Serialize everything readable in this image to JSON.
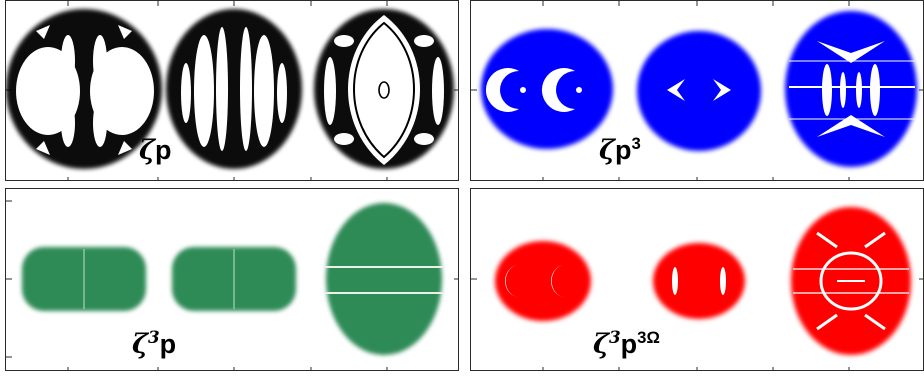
{
  "panels": [
    {
      "id": "zeta-p",
      "label_greek": "ζ",
      "label_greek_sup": "",
      "label_main": "p",
      "label_sup": "",
      "color": "#000000"
    },
    {
      "id": "zeta-p3",
      "label_greek": "ζ",
      "label_greek_sup": "",
      "label_main": "p",
      "label_sup": "3",
      "color": "#0000ff"
    },
    {
      "id": "zeta3-p",
      "label_greek": "ζ",
      "label_greek_sup": "3",
      "label_main": "p",
      "label_sup": "",
      "color": "#2e8b57"
    },
    {
      "id": "zeta3-p3omega",
      "label_greek": "ζ",
      "label_greek_sup": "3",
      "label_main": "p",
      "label_sup": "3Ω",
      "color": "#ff0000"
    }
  ]
}
